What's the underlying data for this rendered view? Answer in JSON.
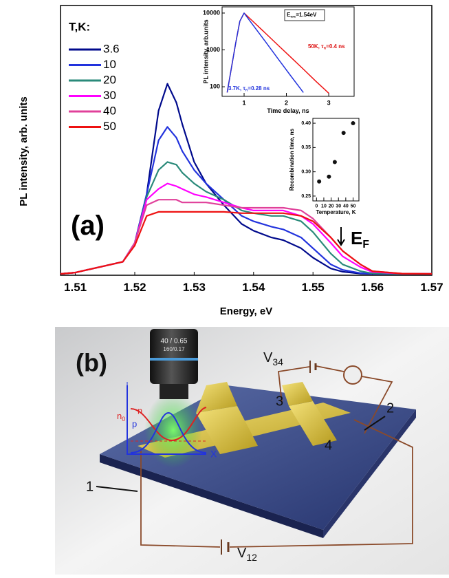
{
  "chart_data": [
    {
      "type": "line",
      "xlabel": "Energy, eV",
      "ylabel": "PL intensity, arb. units",
      "legend_title": "T,K:",
      "x": [
        1.5075,
        1.51,
        1.515,
        1.518,
        1.52,
        1.522,
        1.524,
        1.5255,
        1.527,
        1.528,
        1.53,
        1.532,
        1.535,
        1.538,
        1.54,
        1.543,
        1.545,
        1.548,
        1.55,
        1.553,
        1.555,
        1.558,
        1.56,
        1.565,
        1.57
      ],
      "series": [
        {
          "name": "3.6",
          "color": "#000a8c",
          "values": [
            0.05,
            0.1,
            0.35,
            0.5,
            1.2,
            3.0,
            6.1,
            7.1,
            6.4,
            5.6,
            4.2,
            3.4,
            2.6,
            1.9,
            1.65,
            1.4,
            1.3,
            1.0,
            0.65,
            0.25,
            0.13,
            0.06,
            0.05,
            0.05,
            0.05
          ]
        },
        {
          "name": "10",
          "color": "#2233dd",
          "values": [
            0.05,
            0.1,
            0.35,
            0.5,
            1.2,
            3.0,
            5.0,
            5.5,
            5.1,
            4.6,
            3.9,
            3.4,
            2.8,
            2.2,
            2.0,
            1.8,
            1.7,
            1.4,
            1.0,
            0.4,
            0.2,
            0.08,
            0.05,
            0.05,
            0.05
          ]
        },
        {
          "name": "20",
          "color": "#2a8a7a",
          "values": [
            0.05,
            0.1,
            0.35,
            0.5,
            1.2,
            2.9,
            3.9,
            4.2,
            4.1,
            3.8,
            3.4,
            3.1,
            2.8,
            2.4,
            2.3,
            2.2,
            2.2,
            2.0,
            1.6,
            0.8,
            0.4,
            0.15,
            0.07,
            0.05,
            0.05
          ]
        },
        {
          "name": "30",
          "color": "#ff00ff",
          "values": [
            0.05,
            0.1,
            0.35,
            0.5,
            1.2,
            2.8,
            3.2,
            3.4,
            3.3,
            3.2,
            3.0,
            2.9,
            2.7,
            2.5,
            2.4,
            2.4,
            2.4,
            2.2,
            1.9,
            1.2,
            0.7,
            0.3,
            0.12,
            0.06,
            0.05
          ]
        },
        {
          "name": "40",
          "color": "#e0409a",
          "values": [
            0.05,
            0.1,
            0.35,
            0.5,
            1.2,
            2.6,
            2.8,
            2.8,
            2.8,
            2.7,
            2.7,
            2.7,
            2.6,
            2.5,
            2.5,
            2.5,
            2.5,
            2.4,
            2.1,
            1.4,
            0.9,
            0.4,
            0.15,
            0.06,
            0.05
          ]
        },
        {
          "name": "50",
          "color": "#ee1111",
          "values": [
            0.05,
            0.1,
            0.35,
            0.5,
            1.1,
            2.2,
            2.35,
            2.35,
            2.35,
            2.35,
            2.35,
            2.35,
            2.35,
            2.3,
            2.3,
            2.3,
            2.3,
            2.2,
            2.0,
            1.4,
            0.9,
            0.4,
            0.15,
            0.06,
            0.05
          ]
        }
      ],
      "xlim": [
        1.5075,
        1.57
      ],
      "xticks": [
        1.51,
        1.52,
        1.53,
        1.54,
        1.55,
        1.56,
        1.57
      ],
      "ylim": [
        0,
        10
      ],
      "annotations": [
        {
          "parts": [
            "(a)"
          ],
          "color": "#000"
        },
        {
          "parts": [
            "E",
            "F"
          ],
          "color": "#000"
        }
      ]
    },
    {
      "type": "line",
      "log_y": true,
      "xlabel": "Time delay, ns",
      "ylabel": "PL intensity, arb.units",
      "x": [
        0.6,
        0.8,
        0.9,
        1.0,
        1.2,
        1.5,
        1.8,
        2.1,
        2.4,
        2.7,
        3.0,
        3.3
      ],
      "series": [
        {
          "color": "#ee1111",
          "values": [
            70,
            1500,
            6000,
            10000,
            6100,
            2870,
            1350,
            640,
            300,
            140,
            67,
            null
          ]
        },
        {
          "color": "#2233dd",
          "values": [
            70,
            1500,
            6000,
            10000,
            4900,
            1700,
            580,
            200,
            70,
            null,
            null,
            null
          ]
        }
      ],
      "xlim": [
        0.48,
        3.6
      ],
      "xticks": [
        1,
        2,
        3
      ],
      "ylim": [
        55,
        14700
      ],
      "yticks": [
        100,
        1000,
        10000
      ],
      "annotations": [
        {
          "parts": [
            "E",
            "exc",
            "=1.54eV"
          ],
          "color": "#000"
        },
        {
          "parts": [
            "50K, τ",
            "R",
            "=0.4 ns"
          ],
          "color": "#dd1111"
        },
        {
          "parts": [
            "3.7K, τ",
            "R",
            "=0.28 ns"
          ],
          "color": "#2233dd"
        }
      ]
    },
    {
      "type": "scatter",
      "xlabel": "Temperature, K",
      "ylabel": "Recombination time, ns",
      "x": [
        3.6,
        17,
        25,
        37,
        50
      ],
      "values": [
        0.28,
        0.29,
        0.32,
        0.38,
        0.4
      ],
      "color": "#111",
      "xlim": [
        -5,
        58
      ],
      "xticks": [
        0,
        10,
        20,
        30,
        40,
        50
      ],
      "ylim": [
        0.24,
        0.41
      ],
      "yticks": [
        {
          "value": 0.25,
          "label": "0.25"
        },
        {
          "value": 0.3,
          "label": "0.30"
        },
        {
          "value": 0.35,
          "label": "0.35"
        },
        {
          "value": 0.4,
          "label": "0.40"
        }
      ]
    }
  ],
  "diagram": {
    "label": "(b)",
    "v34": [
      "V",
      "34"
    ],
    "v12": [
      "V",
      "12"
    ],
    "contacts": [
      "1",
      "2",
      "3",
      "4"
    ],
    "n": "n",
    "n0": [
      "n",
      "0"
    ],
    "p": "p",
    "x_axis": "X",
    "objective": [
      "40 / 0.65",
      "160/0.17"
    ]
  }
}
